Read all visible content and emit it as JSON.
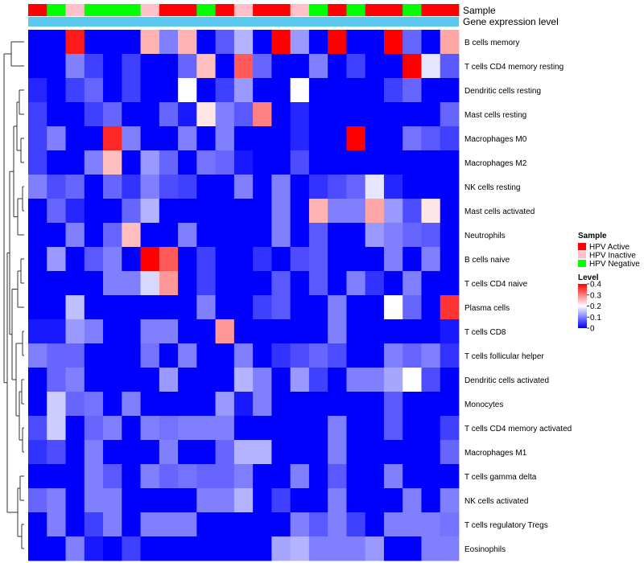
{
  "chart_data": {
    "type": "heatmap",
    "title": "",
    "annotation_tracks": [
      "Sample",
      "Gene expression level"
    ],
    "sample_groups": [
      "HPV Active",
      "HPV Negative",
      "HPV Inactive",
      "HPV Negative",
      "HPV Negative",
      "HPV Negative",
      "HPV Inactive",
      "HPV Active",
      "HPV Active",
      "HPV Negative",
      "HPV Active",
      "HPV Inactive",
      "HPV Active",
      "HPV Active",
      "HPV Inactive",
      "HPV Negative",
      "HPV Active",
      "HPV Negative",
      "HPV Active",
      "HPV Active",
      "HPV Negative",
      "HPV Active",
      "HPV Active"
    ],
    "row_labels": [
      "B cells memory",
      "T cells CD4 memory resting",
      "Dendritic cells resting",
      "Mast cells resting",
      "Macrophages M0",
      "Macrophages M2",
      "NK cells resting",
      "Mast cells activated",
      "Neutrophils",
      "B cells naive",
      "T cells CD4 naive",
      "Plasma cells",
      "T cells CD8",
      "T cells follicular helper",
      "Dendritic cells activated",
      "Monocytes",
      "T cells CD4 memory activated",
      "Macrophages M1",
      "T cells gamma delta",
      "NK cells activated",
      "T cells regulatory  Tregs",
      "Eosinophils"
    ],
    "values": [
      [
        0,
        0,
        0.38,
        0,
        0,
        0,
        0.26,
        0.1,
        0.26,
        0,
        0.07,
        0.14,
        0,
        0.4,
        0.12,
        0,
        0.4,
        0,
        0,
        0.4,
        0.08,
        0,
        0.27
      ],
      [
        0,
        0,
        0.1,
        0.05,
        0,
        0.05,
        0,
        0,
        0.08,
        0.25,
        0,
        0.33,
        0.08,
        0,
        0,
        0.1,
        0,
        0.05,
        0,
        0,
        0.4,
        0.18,
        0.07
      ],
      [
        0.03,
        0,
        0.05,
        0.08,
        0,
        0.05,
        0,
        0,
        0.2,
        0,
        0.05,
        0.12,
        0,
        0,
        0.2,
        0,
        0,
        0,
        0,
        0.05,
        0.08,
        0,
        0
      ],
      [
        0.05,
        0,
        0,
        0.05,
        0.08,
        0,
        0,
        0.08,
        0.02,
        0.22,
        0.1,
        0.07,
        0.3,
        0,
        0.03,
        0,
        0,
        0,
        0,
        0,
        0,
        0,
        0.08
      ],
      [
        0.05,
        0.1,
        0,
        0,
        0.37,
        0.1,
        0,
        0,
        0.1,
        0,
        0.1,
        0,
        0,
        0,
        0.03,
        0,
        0,
        0.4,
        0,
        0,
        0.09,
        0.07,
        0.05
      ],
      [
        0.05,
        0,
        0,
        0.1,
        0.25,
        0,
        0.12,
        0.08,
        0,
        0.09,
        0.08,
        0.02,
        0,
        0,
        0.06,
        0,
        0,
        0,
        0,
        0,
        0,
        0,
        0
      ],
      [
        0.1,
        0.06,
        0.08,
        0,
        0.08,
        0.04,
        0.1,
        0.06,
        0.05,
        0,
        0,
        0.1,
        0,
        0.1,
        0,
        0.04,
        0.06,
        0.08,
        0.18,
        0.03,
        0,
        0,
        0
      ],
      [
        0,
        0.08,
        0.03,
        0,
        0,
        0.08,
        0.14,
        0,
        0,
        0,
        0,
        0,
        0,
        0.1,
        0,
        0.26,
        0.1,
        0.1,
        0.27,
        0.12,
        0.06,
        0.22,
        0
      ],
      [
        0,
        0,
        0.1,
        0,
        0.08,
        0.25,
        0,
        0,
        0.1,
        0,
        0,
        0,
        0,
        0.1,
        0,
        0.07,
        0,
        0,
        0.12,
        0.1,
        0.08,
        0.07,
        0
      ],
      [
        0,
        0.12,
        0,
        0.07,
        0.1,
        0,
        0.4,
        0.33,
        0,
        0.05,
        0,
        0,
        0.04,
        0,
        0.06,
        0.07,
        0,
        0,
        0,
        0.1,
        0,
        0.1,
        0
      ],
      [
        0,
        0,
        0,
        0,
        0.1,
        0.1,
        0.17,
        0.28,
        0,
        0.05,
        0,
        0,
        0,
        0.07,
        0,
        0.07,
        0,
        0.1,
        0.04,
        0,
        0.1,
        0,
        0
      ],
      [
        0,
        0,
        0.15,
        0,
        0,
        0,
        0,
        0,
        0,
        0.1,
        0,
        0,
        0.05,
        0.07,
        0,
        0,
        0.1,
        0,
        0,
        0.2,
        0.08,
        0,
        0.36
      ],
      [
        0.02,
        0.02,
        0.12,
        0.1,
        0,
        0,
        0.1,
        0.1,
        0,
        0,
        0.28,
        0,
        0,
        0,
        0,
        0,
        0.1,
        0,
        0,
        0,
        0,
        0,
        0.02
      ],
      [
        0.1,
        0.08,
        0.08,
        0,
        0,
        0,
        0.09,
        0,
        0.1,
        0,
        0,
        0.1,
        0,
        0.04,
        0.06,
        0.08,
        0.06,
        0,
        0,
        0.1,
        0.08,
        0.1,
        0.04
      ],
      [
        0,
        0.08,
        0.1,
        0,
        0,
        0,
        0,
        0.12,
        0,
        0,
        0,
        0.14,
        0.1,
        0,
        0.12,
        0.05,
        0,
        0.1,
        0.1,
        0.13,
        0.2,
        0.06,
        0
      ],
      [
        0,
        0.16,
        0.08,
        0.09,
        0,
        0.1,
        0,
        0,
        0,
        0,
        0.12,
        0.02,
        0.1,
        0,
        0,
        0,
        0,
        0,
        0,
        0.07,
        0,
        0,
        0
      ],
      [
        0.06,
        0.16,
        0,
        0.08,
        0.1,
        0,
        0.1,
        0.09,
        0.1,
        0.1,
        0.1,
        0,
        0,
        0,
        0,
        0,
        0.1,
        0,
        0,
        0.07,
        0,
        0,
        0.05
      ],
      [
        0.04,
        0.06,
        0,
        0.1,
        0,
        0,
        0,
        0.1,
        0,
        0,
        0.08,
        0.14,
        0.14,
        0,
        0,
        0,
        0.1,
        0,
        0,
        0,
        0,
        0,
        0.08
      ],
      [
        0,
        0,
        0,
        0.1,
        0.07,
        0,
        0.1,
        0.08,
        0.09,
        0.08,
        0.08,
        0.1,
        0,
        0,
        0.1,
        0,
        0.07,
        0,
        0,
        0.1,
        0,
        0,
        0
      ],
      [
        0.08,
        0.1,
        0,
        0.1,
        0.1,
        0,
        0,
        0,
        0,
        0.1,
        0.1,
        0.14,
        0,
        0.05,
        0,
        0,
        0.1,
        0,
        0,
        0,
        0.1,
        0,
        0.1
      ],
      [
        0,
        0.1,
        0,
        0.05,
        0.1,
        0,
        0.1,
        0.1,
        0.1,
        0,
        0,
        0,
        0,
        0,
        0.1,
        0.07,
        0.1,
        0.05,
        0,
        0.1,
        0.1,
        0.1,
        0.09
      ],
      [
        0,
        0,
        0.1,
        0.02,
        0,
        0.05,
        0,
        0,
        0,
        0,
        0,
        0,
        0,
        0.13,
        0.14,
        0.1,
        0.1,
        0.1,
        0.12,
        0,
        0,
        0.1,
        0.1
      ]
    ],
    "color_scale": {
      "min": 0,
      "max": 0.4,
      "low": "#0000FF",
      "mid": "#FFFFFF",
      "high": "#FF0000",
      "mid_value": 0.2
    },
    "legend": {
      "sample_title": "Sample",
      "sample_entries": [
        {
          "label": "HPV Active",
          "color": "#FF0000"
        },
        {
          "label": "HPV Inactive",
          "color": "#FFC0CB"
        },
        {
          "label": "HPV Negative",
          "color": "#00FF00"
        }
      ],
      "level_title": "Level",
      "level_ticks": [
        "0.4",
        "0.3",
        "0.2",
        "0.1",
        "0"
      ],
      "level_tick_values": [
        0.4,
        0.3,
        0.2,
        0.1,
        0
      ]
    },
    "group_colors": {
      "HPV Active": "#FF0000",
      "HPV Inactive": "#FFC0CB",
      "HPV Negative": "#00FF00"
    },
    "expression_track_color": "#5BC8EE",
    "dendrogram": "row dendrogram on left, columns ordered without dendrogram"
  }
}
